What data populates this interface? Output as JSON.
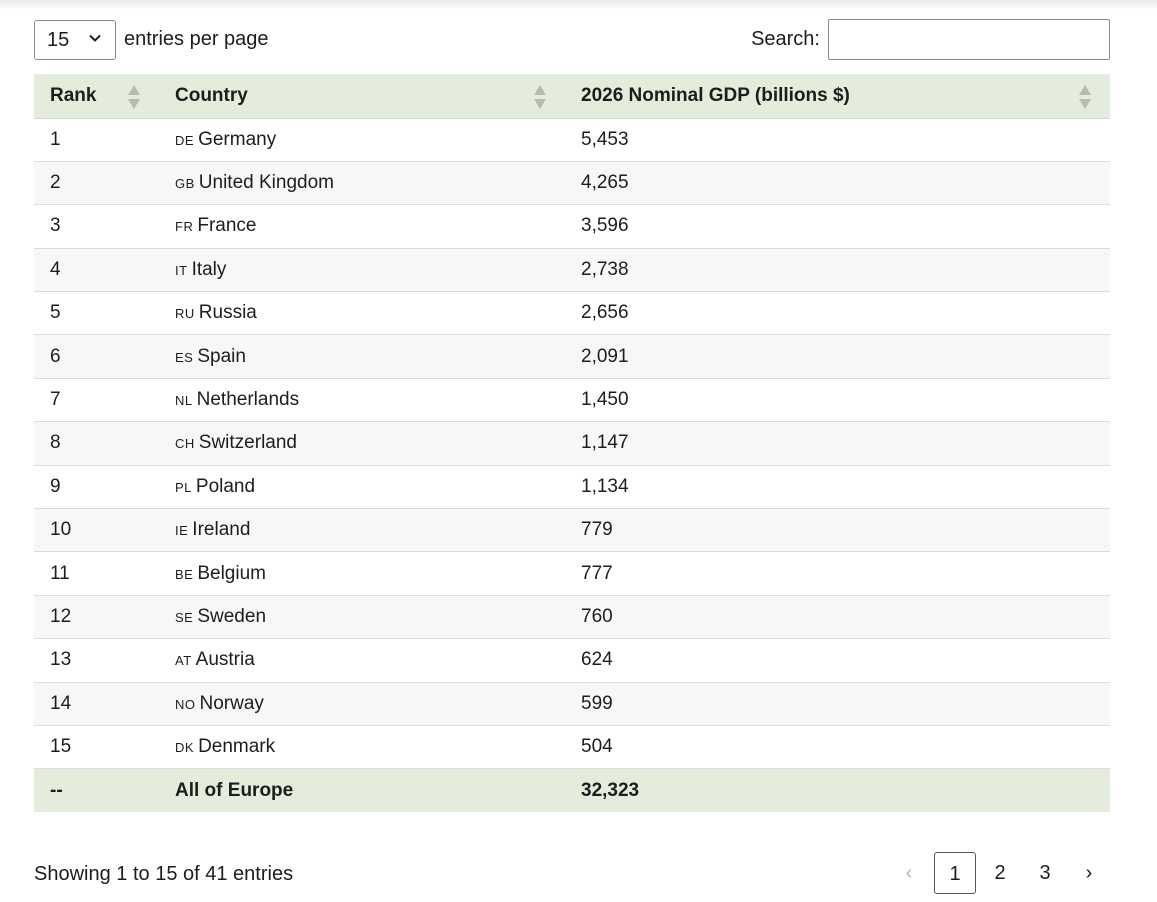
{
  "controls": {
    "page_size": "15",
    "entries_label": "entries per page",
    "search_label": "Search:",
    "search_value": "",
    "search_placeholder": ""
  },
  "table": {
    "headers": {
      "rank": "Rank",
      "country": "Country",
      "gdp": "2026 Nominal GDP (billions $)"
    },
    "rows": [
      {
        "rank": "1",
        "code": "DE",
        "country": "Germany",
        "gdp": "5,453"
      },
      {
        "rank": "2",
        "code": "GB",
        "country": "United Kingdom",
        "gdp": "4,265"
      },
      {
        "rank": "3",
        "code": "FR",
        "country": "France",
        "gdp": "3,596"
      },
      {
        "rank": "4",
        "code": "IT",
        "country": "Italy",
        "gdp": "2,738"
      },
      {
        "rank": "5",
        "code": "RU",
        "country": "Russia",
        "gdp": "2,656"
      },
      {
        "rank": "6",
        "code": "ES",
        "country": "Spain",
        "gdp": "2,091"
      },
      {
        "rank": "7",
        "code": "NL",
        "country": "Netherlands",
        "gdp": "1,450"
      },
      {
        "rank": "8",
        "code": "CH",
        "country": "Switzerland",
        "gdp": "1,147"
      },
      {
        "rank": "9",
        "code": "PL",
        "country": "Poland",
        "gdp": "1,134"
      },
      {
        "rank": "10",
        "code": "IE",
        "country": "Ireland",
        "gdp": "779"
      },
      {
        "rank": "11",
        "code": "BE",
        "country": "Belgium",
        "gdp": "777"
      },
      {
        "rank": "12",
        "code": "SE",
        "country": "Sweden",
        "gdp": "760"
      },
      {
        "rank": "13",
        "code": "AT",
        "country": "Austria",
        "gdp": "624"
      },
      {
        "rank": "14",
        "code": "NO",
        "country": "Norway",
        "gdp": "599"
      },
      {
        "rank": "15",
        "code": "DK",
        "country": "Denmark",
        "gdp": "504"
      }
    ],
    "footer": {
      "rank": "--",
      "country": "All of Europe",
      "gdp": "32,323"
    }
  },
  "info": "Showing 1 to 15 of 41 entries",
  "pagination": {
    "prev": "‹",
    "pages": [
      "1",
      "2",
      "3"
    ],
    "current": "1",
    "next": "›"
  },
  "icons": {
    "select": "chevron-down-icon",
    "sort": "sort-icon"
  },
  "colors": {
    "header_bg": "#e4ecdc",
    "stripe_bg": "#f7f7f7"
  }
}
